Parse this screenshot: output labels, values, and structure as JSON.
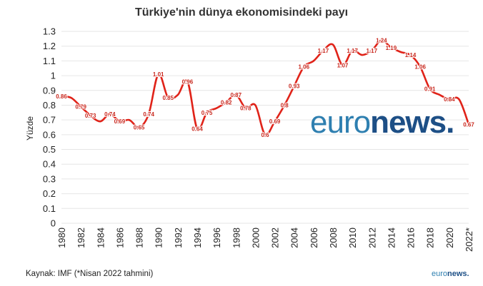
{
  "chart_data": {
    "type": "line",
    "title": "Türkiye'nin dünya ekonomisindeki payı",
    "ylabel": "Yüzde",
    "xlabel": "",
    "ylim": [
      0,
      1.3
    ],
    "yticks": [
      "0",
      "0.1",
      "0.2",
      "0.3",
      "0.4",
      "0.5",
      "0.6",
      "0.7",
      "0.8",
      "0.9",
      "1",
      "1.1",
      "1.2",
      "1.3"
    ],
    "xticks": [
      "1980",
      "1982",
      "1984",
      "1986",
      "1988",
      "1990",
      "1992",
      "1994",
      "1996",
      "1998",
      "2000",
      "2002",
      "2004",
      "2006",
      "2008",
      "2010",
      "2012",
      "2014",
      "2016",
      "2018",
      "2020",
      "2022*"
    ],
    "grid": true,
    "color": "#e02319",
    "x": [
      1980,
      1981,
      1982,
      1983,
      1984,
      1985,
      1986,
      1987,
      1988,
      1989,
      1990,
      1991,
      1992,
      1993,
      1994,
      1995,
      1996,
      1997,
      1998,
      1999,
      2000,
      2001,
      2002,
      2003,
      2004,
      2005,
      2006,
      2007,
      2008,
      2009,
      2010,
      2011,
      2012,
      2013,
      2014,
      2015,
      2016,
      2017,
      2018,
      2019,
      2020,
      2021,
      2022
    ],
    "values": [
      0.86,
      0.85,
      0.79,
      0.73,
      0.69,
      0.74,
      0.69,
      0.7,
      0.65,
      0.74,
      1.01,
      0.85,
      0.87,
      0.96,
      0.64,
      0.75,
      0.78,
      0.82,
      0.87,
      0.78,
      0.8,
      0.6,
      0.69,
      0.8,
      0.93,
      1.06,
      1.1,
      1.17,
      1.21,
      1.07,
      1.17,
      1.14,
      1.17,
      1.24,
      1.19,
      1.16,
      1.14,
      1.06,
      0.91,
      0.87,
      0.84,
      0.84,
      0.67
    ],
    "data_labels": [
      {
        "x": 1980,
        "text": "0.86"
      },
      {
        "x": 1982,
        "text": "0.79"
      },
      {
        "x": 1983,
        "text": "0.73"
      },
      {
        "x": 1985,
        "text": "0.74"
      },
      {
        "x": 1986,
        "text": "0.69"
      },
      {
        "x": 1988,
        "text": "0.65"
      },
      {
        "x": 1989,
        "text": "0.74"
      },
      {
        "x": 1990,
        "text": "1.01"
      },
      {
        "x": 1991,
        "text": "0.85"
      },
      {
        "x": 1993,
        "text": "0.96"
      },
      {
        "x": 1994,
        "text": "0.64"
      },
      {
        "x": 1995,
        "text": "0.75"
      },
      {
        "x": 1997,
        "text": "0.82"
      },
      {
        "x": 1998,
        "text": "0.87"
      },
      {
        "x": 1999,
        "text": "0.78"
      },
      {
        "x": 2001,
        "text": "0.6"
      },
      {
        "x": 2002,
        "text": "0.69"
      },
      {
        "x": 2003,
        "text": "0.8"
      },
      {
        "x": 2004,
        "text": "0.93"
      },
      {
        "x": 2005,
        "text": "1.06"
      },
      {
        "x": 2007,
        "text": "1.17"
      },
      {
        "x": 2009,
        "text": "1.07"
      },
      {
        "x": 2010,
        "text": "1.17"
      },
      {
        "x": 2012,
        "text": "1.17"
      },
      {
        "x": 2013,
        "text": "1.24"
      },
      {
        "x": 2014,
        "text": "1.19"
      },
      {
        "x": 2016,
        "text": "1.14"
      },
      {
        "x": 2017,
        "text": "1.06"
      },
      {
        "x": 2018,
        "text": "0.91"
      },
      {
        "x": 2020,
        "text": "0.84"
      },
      {
        "x": 2022,
        "text": "0.67"
      }
    ]
  },
  "footer": {
    "source": "Kaynak: IMF (*Nisan 2022 tahmini)"
  },
  "watermark": {
    "part1": "euro",
    "part2": "news."
  }
}
